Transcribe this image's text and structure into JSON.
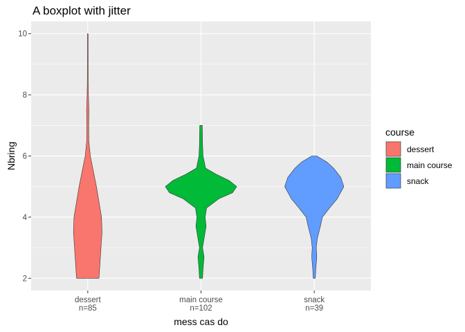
{
  "chart_data": {
    "type": "violin",
    "title": "A boxplot with jitter",
    "xlabel": "mess cas do",
    "ylabel": "Nbring",
    "ylim": [
      1.6,
      10.4
    ],
    "yticks": [
      2,
      4,
      6,
      8,
      10
    ],
    "grid": true,
    "legend": {
      "title": "course",
      "position": "right",
      "entries": [
        "dessert",
        "main course",
        "snack"
      ]
    },
    "categories": [
      {
        "name": "dessert",
        "count_label": "n=85",
        "color": "#F8766D",
        "profile": [
          [
            2.0,
            0.22
          ],
          [
            2.5,
            0.24
          ],
          [
            3.0,
            0.26
          ],
          [
            3.5,
            0.28
          ],
          [
            4.0,
            0.27
          ],
          [
            4.5,
            0.22
          ],
          [
            5.0,
            0.17
          ],
          [
            5.5,
            0.11
          ],
          [
            6.0,
            0.05
          ],
          [
            6.5,
            0.02
          ],
          [
            7.0,
            0.018
          ],
          [
            7.5,
            0.022
          ],
          [
            8.0,
            0.012
          ],
          [
            8.5,
            0.008
          ],
          [
            9.0,
            0.007
          ],
          [
            9.5,
            0.006
          ],
          [
            10.0,
            0.006
          ]
        ]
      },
      {
        "name": "main course",
        "count_label": "n=102",
        "color": "#00BA38",
        "profile": [
          [
            2.0,
            0.03
          ],
          [
            2.3,
            0.04
          ],
          [
            2.7,
            0.06
          ],
          [
            3.0,
            0.03
          ],
          [
            3.3,
            0.06
          ],
          [
            3.7,
            0.1
          ],
          [
            4.0,
            0.08
          ],
          [
            4.3,
            0.11
          ],
          [
            4.6,
            0.35
          ],
          [
            4.8,
            0.62
          ],
          [
            5.0,
            0.7
          ],
          [
            5.2,
            0.55
          ],
          [
            5.4,
            0.3
          ],
          [
            5.6,
            0.09
          ],
          [
            6.0,
            0.04
          ],
          [
            6.4,
            0.03
          ],
          [
            7.0,
            0.025
          ]
        ]
      },
      {
        "name": "snack",
        "count_label": "n=39",
        "color": "#619CFF",
        "profile": [
          [
            2.0,
            0.02
          ],
          [
            2.3,
            0.03
          ],
          [
            2.7,
            0.05
          ],
          [
            3.0,
            0.04
          ],
          [
            3.3,
            0.06
          ],
          [
            3.7,
            0.12
          ],
          [
            4.0,
            0.16
          ],
          [
            4.3,
            0.3
          ],
          [
            4.6,
            0.45
          ],
          [
            5.0,
            0.58
          ],
          [
            5.3,
            0.52
          ],
          [
            5.6,
            0.38
          ],
          [
            5.8,
            0.25
          ],
          [
            6.0,
            0.05
          ]
        ]
      }
    ]
  }
}
